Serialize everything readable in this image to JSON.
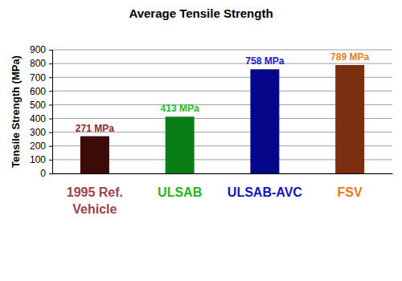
{
  "chart_data": {
    "type": "bar",
    "title": "Average Tensile Strength",
    "y_label": "Tensile Strength (MPa)",
    "categories": [
      "1995 Ref. Vehicle",
      "ULSAB",
      "ULSAB-AVC",
      "FSV"
    ],
    "values": [
      271,
      413,
      758,
      789
    ],
    "value_labels": [
      "271 MPa",
      "413 MPa",
      "758 MPa",
      "789 MPa"
    ],
    "colors": [
      "#3d0a0a",
      "#0b7d16",
      "#06068a",
      "#7b2f0e"
    ],
    "ylim": [
      0,
      900
    ],
    "yticks": [
      0,
      100,
      200,
      300,
      400,
      500,
      600,
      700,
      800,
      900
    ],
    "grid": true,
    "data_labels": true
  }
}
